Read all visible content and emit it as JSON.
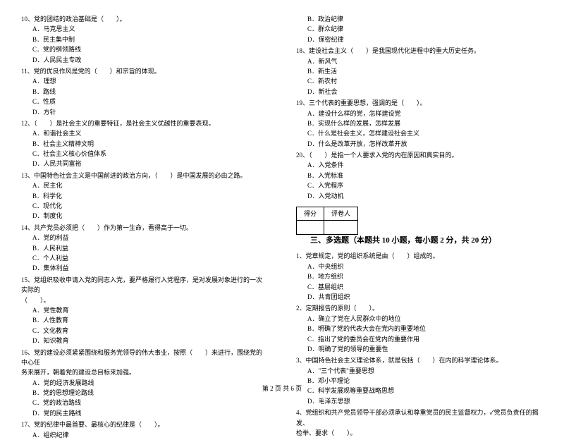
{
  "left": {
    "q10": {
      "text": "10、党的团结的政治基础是（　　）。",
      "a": "A．马克思主义",
      "b": "B．民主集中制",
      "c": "C．党的纲领路线",
      "d": "D．人民民主专政"
    },
    "q11": {
      "text": "11、党的优良作风是党的（　　）和宗旨的体现。",
      "a": "A．理想",
      "b": "B．路线",
      "c": "C．性质",
      "d": "D．方针"
    },
    "q12": {
      "text": "12、（　　）是社会主义的重要特征，是社会主义优越性的重要表现。",
      "a": "A．和谐社会主义",
      "b": "B．社会主义精神文明",
      "c": "C．社会主义核心价值体系",
      "d": "D．人民共同富裕"
    },
    "q13": {
      "text": "13、中国特色社会主义是中国前进的政治方向，（　　）是中国发展的必由之路。",
      "a": "A．民主化",
      "b": "B．科学化",
      "c": "C．现代化",
      "d": "D．制度化"
    },
    "q14": {
      "text": "14、共产党员必须把（　　）作为第一生命，看得高于一切。",
      "a": "A．党的利益",
      "b": "B．人民利益",
      "c": "C．个人利益",
      "d": "D．集体利益"
    },
    "q15": {
      "text": "15、党组织吸收申请入党的同志入党，要严格履行入党程序，是对发展对象进行的一次实际的",
      "text2": "（　　）。",
      "a": "A．党性教育",
      "b": "B．人性教育",
      "c": "C．文化教育",
      "d": "D．知识教育"
    },
    "q16": {
      "text": "16、党的建设必须紧紧围绕和服务党领导的伟大事业，按照（　　）来进行，围绕党的中心任",
      "text2": "务来展开，朝着党的建设总目标来加强。",
      "a": "A．党的经济发展路线",
      "b": "B．党的思想理论路线",
      "c": "C．党的政治路线",
      "d": "D．党的民主路线"
    },
    "q17": {
      "text": "17、党的纪律中最首要、最核心的纪律是（　　）。",
      "a": "A．组织纪律"
    }
  },
  "right": {
    "q17cont": {
      "b": "B．政治纪律",
      "c": "C．群众纪律",
      "d": "D．保密纪律"
    },
    "q18": {
      "text": "18、建设社会主义（　　）是我国现代化进程中的重大历史任务。",
      "a": "A．新风气",
      "b": "B．新生活",
      "c": "C．新农村",
      "d": "D．新社会"
    },
    "q19": {
      "text": "19、三个代表的重要思想，强调的是（　　）。",
      "a": "A．建设什么样的党，怎样建设党",
      "b": "B．实现什么样的发展，怎样发展",
      "c": "C．什么是社会主义，怎样建设社会主义",
      "d": "D．什么是改革开放，怎样改革开放"
    },
    "q20": {
      "text": "20、（　　）是指一个人要求入党的内在原因和真实目的。",
      "a": "A．入党条件",
      "b": "B．入党标准",
      "c": "C．入党程序",
      "d": "D．入党动机"
    },
    "section3": {
      "score_label": "得分",
      "reviewer_label": "评卷人",
      "title": "三、多选题（本题共 10 小题，每小题 2 分，共 20 分）"
    },
    "mq1": {
      "text": "1、党章规定，党的组织系统是由（　　）组成的。",
      "a": "A．中央组织",
      "b": "B．地方组织",
      "c": "C．基层组织",
      "d": "D．共青团组织"
    },
    "mq2": {
      "text": "2、定期报告的原则（　　）。",
      "a": "A．确立了党在人民群众中的地位",
      "b": "B．明确了党的代表大会在党内的重要地位",
      "c": "C．指出了党的委员会在党内的重要作用",
      "d": "D．明确了党的领导的重要性"
    },
    "mq3": {
      "text": "3、中国特色社会主义理论体系，就是包括（　　）在内的科学理论体系。",
      "a": "A．\"三个代表\"重要思想",
      "b": "B．邓小平理论",
      "c": "C．科学发展观等重要战略思想",
      "d": "D．毛泽东思想"
    },
    "mq4": {
      "text": "4、党组织和共产党员领导干部必须承认和尊重党员的民主监督权力，✓党员负责任的揭发、",
      "text2": "检举、要求（　　）。"
    }
  },
  "footer": "第 2 页 共 6 页"
}
